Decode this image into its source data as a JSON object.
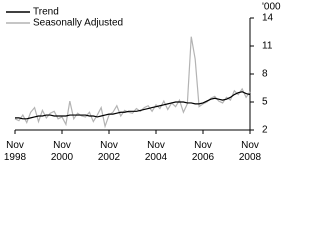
{
  "chart_data": {
    "type": "line",
    "y_axis_label": "'000",
    "categories": [
      "Nov 1998",
      null,
      null,
      null,
      null,
      null,
      null,
      null,
      null,
      null,
      null,
      null,
      "Nov 2000",
      null,
      null,
      null,
      null,
      null,
      null,
      null,
      null,
      null,
      null,
      null,
      "Nov 2002",
      null,
      null,
      null,
      null,
      null,
      null,
      null,
      null,
      null,
      null,
      null,
      "Nov 2004",
      null,
      null,
      null,
      null,
      null,
      null,
      null,
      null,
      null,
      null,
      null,
      "Nov 2006",
      null,
      null,
      null,
      null,
      null,
      null,
      null,
      null,
      null,
      null,
      null,
      "Nov 2008"
    ],
    "series": [
      {
        "name": "Trend",
        "color": "#000000",
        "values": [
          3.3,
          3.3,
          3.2,
          3.2,
          3.3,
          3.4,
          3.5,
          3.5,
          3.6,
          3.6,
          3.5,
          3.5,
          3.5,
          3.5,
          3.6,
          3.6,
          3.6,
          3.6,
          3.6,
          3.5,
          3.5,
          3.4,
          3.5,
          3.6,
          3.7,
          3.7,
          3.8,
          3.9,
          3.9,
          4.0,
          4.0,
          4.0,
          4.1,
          4.2,
          4.3,
          4.4,
          4.5,
          4.6,
          4.7,
          4.8,
          4.9,
          5.0,
          5.0,
          5.0,
          4.9,
          4.9,
          4.8,
          4.8,
          4.9,
          5.1,
          5.3,
          5.4,
          5.3,
          5.2,
          5.3,
          5.5,
          5.8,
          6.0,
          6.1,
          5.9,
          5.8
        ]
      },
      {
        "name": "Seasonally Adjusted",
        "color": "#b3b3b3",
        "values": [
          3.2,
          3.0,
          3.6,
          2.8,
          3.9,
          4.4,
          2.9,
          4.1,
          3.3,
          3.8,
          4.0,
          3.2,
          3.4,
          2.6,
          5.1,
          3.2,
          3.8,
          3.5,
          3.4,
          3.9,
          2.9,
          3.6,
          4.4,
          2.4,
          3.6,
          3.9,
          4.6,
          3.5,
          4.1,
          3.9,
          3.8,
          4.3,
          4.0,
          4.4,
          4.6,
          4.0,
          4.7,
          4.3,
          5.1,
          4.2,
          4.9,
          4.5,
          5.2,
          3.9,
          4.8,
          12.0,
          9.6,
          4.5,
          4.8,
          5.0,
          5.4,
          5.6,
          5.1,
          4.9,
          5.5,
          5.2,
          6.2,
          5.8,
          6.4,
          5.5,
          6.1
        ]
      }
    ],
    "ylim": [
      2,
      14
    ],
    "yticks": [
      2,
      5,
      8,
      11,
      14
    ]
  }
}
